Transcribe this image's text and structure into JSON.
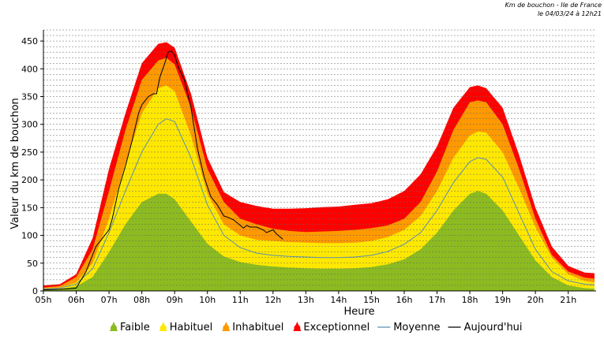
{
  "header": {
    "title": "Km de bouchon - Ile de France",
    "subtitle": "le 04/03/24 à 12h21"
  },
  "colors": {
    "faible": "#8cbb21",
    "habituel": "#ffe800",
    "inhabituel": "#ff9900",
    "exceptionnel": "#ff0000",
    "moyenne": "#5a8fb0",
    "aujourdhui": "#000000",
    "grid": "#666666"
  },
  "chart_data": {
    "type": "area",
    "xlabel": "Heure",
    "ylabel": "Valeur du  km de bouchon",
    "ylim": [
      0,
      470
    ],
    "xlim": [
      5,
      21.85
    ],
    "yticks": [
      0,
      50,
      100,
      150,
      200,
      250,
      300,
      350,
      400,
      450
    ],
    "xticks": [
      {
        "x": 5,
        "label": "05h"
      },
      {
        "x": 6,
        "label": "06h"
      },
      {
        "x": 7,
        "label": "07h"
      },
      {
        "x": 8,
        "label": "08h"
      },
      {
        "x": 9,
        "label": "09h"
      },
      {
        "x": 10,
        "label": "10h"
      },
      {
        "x": 11,
        "label": "11h"
      },
      {
        "x": 12,
        "label": "12h"
      },
      {
        "x": 13,
        "label": "13h"
      },
      {
        "x": 14,
        "label": "14h"
      },
      {
        "x": 15,
        "label": "15h"
      },
      {
        "x": 16,
        "label": "16h"
      },
      {
        "x": 17,
        "label": "17h"
      },
      {
        "x": 18,
        "label": "18h"
      },
      {
        "x": 19,
        "label": "19h"
      },
      {
        "x": 20,
        "label": "20h"
      },
      {
        "x": 21,
        "label": "21h"
      }
    ],
    "grid": "horizontal dashed",
    "legend_position": "bottom",
    "x": [
      5,
      5.5,
      6,
      6.5,
      7,
      7.5,
      8,
      8.5,
      8.75,
      9,
      9.5,
      10,
      10.5,
      11,
      11.5,
      12,
      12.5,
      13,
      13.5,
      14,
      14.5,
      15,
      15.5,
      16,
      16.5,
      17,
      17.5,
      18,
      18.25,
      18.5,
      19,
      19.5,
      20,
      20.5,
      21,
      21.5,
      21.8
    ],
    "bands": [
      {
        "name": "Faible",
        "values": [
          2,
          3,
          8,
          25,
          70,
          120,
          160,
          175,
          175,
          165,
          125,
          85,
          62,
          52,
          47,
          44,
          42,
          41,
          40,
          40,
          41,
          43,
          48,
          57,
          75,
          105,
          145,
          175,
          180,
          175,
          145,
          100,
          55,
          25,
          10,
          5,
          4
        ]
      },
      {
        "name": "Habituel",
        "values": [
          4,
          6,
          15,
          50,
          130,
          230,
          320,
          365,
          370,
          360,
          280,
          175,
          120,
          100,
          92,
          90,
          88,
          87,
          86,
          86,
          87,
          90,
          97,
          110,
          135,
          180,
          240,
          280,
          287,
          285,
          250,
          185,
          115,
          60,
          30,
          18,
          15
        ]
      },
      {
        "name": "Inhabituel",
        "values": [
          6,
          9,
          25,
          75,
          180,
          290,
          380,
          415,
          420,
          408,
          330,
          220,
          160,
          130,
          120,
          112,
          108,
          106,
          107,
          108,
          110,
          113,
          118,
          130,
          160,
          215,
          290,
          340,
          343,
          340,
          300,
          220,
          130,
          65,
          35,
          24,
          22
        ]
      },
      {
        "name": "Exceptionnel",
        "values": [
          10,
          12,
          30,
          95,
          220,
          320,
          410,
          445,
          448,
          438,
          355,
          240,
          178,
          160,
          153,
          148,
          148,
          149,
          151,
          152,
          155,
          158,
          165,
          180,
          210,
          260,
          330,
          367,
          370,
          365,
          330,
          245,
          150,
          80,
          45,
          33,
          32
        ]
      }
    ],
    "series": [
      {
        "name": "Moyenne",
        "x": [
          5,
          5.5,
          6,
          6.5,
          7,
          7.5,
          8,
          8.5,
          8.75,
          9,
          9.5,
          10,
          10.5,
          11,
          11.5,
          12,
          12.5,
          13,
          13.5,
          14,
          14.5,
          15,
          15.5,
          16,
          16.5,
          17,
          17.5,
          18,
          18.25,
          18.5,
          19,
          19.5,
          20,
          20.5,
          21,
          21.5,
          21.8
        ],
        "values": [
          3,
          5,
          12,
          40,
          105,
          180,
          250,
          300,
          310,
          305,
          240,
          155,
          100,
          78,
          68,
          64,
          62,
          61,
          60,
          60,
          61,
          64,
          71,
          84,
          105,
          145,
          195,
          233,
          240,
          237,
          205,
          140,
          75,
          35,
          18,
          12,
          11
        ]
      },
      {
        "name": "Aujourd'hui",
        "x": [
          5,
          5.5,
          6,
          6.1,
          6.3,
          6.5,
          6.6,
          6.8,
          7,
          7.1,
          7.3,
          7.5,
          7.7,
          7.9,
          8.0,
          8.2,
          8.35,
          8.45,
          8.55,
          8.7,
          8.8,
          8.9,
          9.0,
          9.1,
          9.3,
          9.5,
          9.7,
          9.9,
          10.1,
          10.3,
          10.5,
          10.6,
          10.8,
          11.0,
          11.1,
          11.2,
          11.3,
          11.5,
          11.7,
          11.8,
          12.0,
          12.1,
          12.2,
          12.3
        ],
        "values": [
          2,
          3,
          5,
          15,
          35,
          65,
          80,
          95,
          110,
          130,
          185,
          225,
          270,
          320,
          335,
          350,
          355,
          355,
          385,
          410,
          430,
          432,
          425,
          405,
          380,
          330,
          255,
          205,
          170,
          155,
          135,
          133,
          128,
          118,
          113,
          118,
          115,
          115,
          110,
          105,
          110,
          103,
          98,
          93
        ]
      }
    ],
    "legend": [
      "Faible",
      "Habituel",
      "Inhabituel",
      "Exceptionnel",
      "Moyenne",
      "Aujourd'hui"
    ]
  }
}
